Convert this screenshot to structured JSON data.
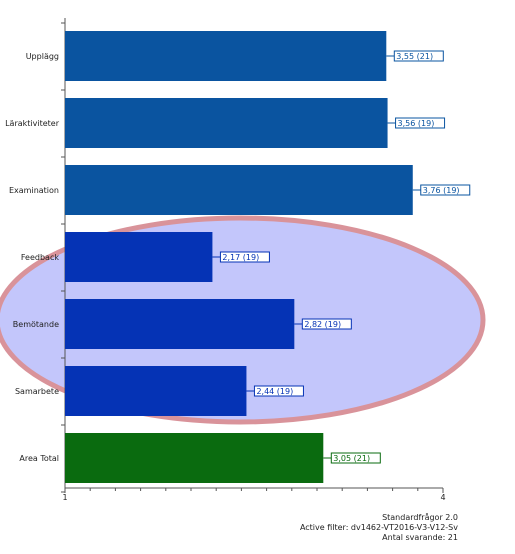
{
  "chart_data": {
    "type": "bar",
    "orientation": "horizontal",
    "categories": [
      "Upplägg",
      "Läraktiviteter",
      "Examination",
      "Feedback",
      "Bemötande",
      "Samarbete",
      "Area Total"
    ],
    "values": [
      3.55,
      3.56,
      3.76,
      2.17,
      2.82,
      2.44,
      3.05
    ],
    "value_labels": [
      "3,55 (21)",
      "3,56 (19)",
      "3,76 (19)",
      "2,17 (19)",
      "2,82 (19)",
      "2,44 (19)",
      "3,05 (21)"
    ],
    "xlim": [
      1,
      4
    ],
    "x_tick_labels": [
      "1",
      "4"
    ],
    "colors": [
      "#0a54a0",
      "#0a54a0",
      "#0a54a0",
      "#0533b5",
      "#0533b5",
      "#0533b5",
      "#0a6b0f"
    ],
    "highlight": {
      "fill": "#c3c6fb",
      "stroke": "#d9939a",
      "covers": [
        "Feedback",
        "Bemötande",
        "Samarbete"
      ]
    }
  },
  "footer": {
    "line1": "Standardfrågor 2.0",
    "line2": "Active filter: dv1462-VT2016-V3-V12-Sv",
    "line3": "Antal svarande: 21"
  }
}
